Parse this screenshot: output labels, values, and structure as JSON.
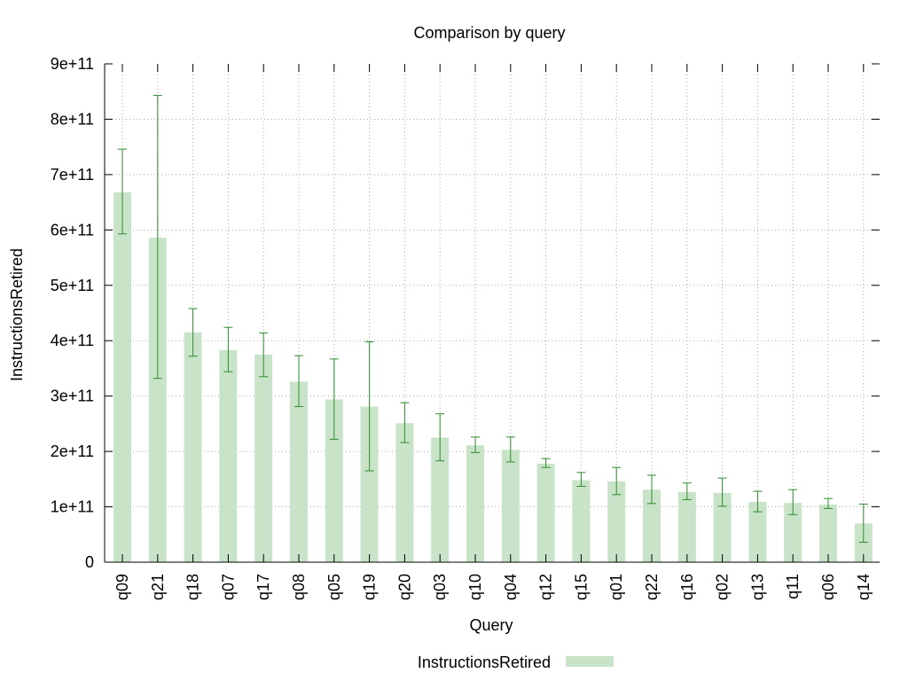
{
  "chart_data": {
    "type": "bar",
    "title": "Comparison by query",
    "xlabel": "Query",
    "ylabel": "InstructionsRetired",
    "ylim": [
      0,
      900000000000
    ],
    "yticks": [
      {
        "value": 0,
        "label": "0"
      },
      {
        "value": 100000000000,
        "label": "1e+11"
      },
      {
        "value": 200000000000,
        "label": "2e+11"
      },
      {
        "value": 300000000000,
        "label": "3e+11"
      },
      {
        "value": 400000000000,
        "label": "4e+11"
      },
      {
        "value": 500000000000,
        "label": "5e+11"
      },
      {
        "value": 600000000000,
        "label": "6e+11"
      },
      {
        "value": 700000000000,
        "label": "7e+11"
      },
      {
        "value": 800000000000,
        "label": "8e+11"
      },
      {
        "value": 900000000000,
        "label": "9e+11"
      }
    ],
    "categories": [
      "q09",
      "q21",
      "q18",
      "q07",
      "q17",
      "q08",
      "q05",
      "q19",
      "q20",
      "q03",
      "q10",
      "q04",
      "q12",
      "q15",
      "q01",
      "q22",
      "q16",
      "q02",
      "q13",
      "q11",
      "q06",
      "q14"
    ],
    "series": [
      {
        "name": "InstructionsRetired",
        "values": [
          668000000000.0,
          586000000000.0,
          415000000000.0,
          383000000000.0,
          375000000000.0,
          326000000000.0,
          294000000000.0,
          281000000000.0,
          251000000000.0,
          225000000000.0,
          211000000000.0,
          203000000000.0,
          178000000000.0,
          148000000000.0,
          146000000000.0,
          131000000000.0,
          127000000000.0,
          125000000000.0,
          109000000000.0,
          107000000000.0,
          104000000000.0,
          70000000000.0
        ],
        "error_low": [
          593000000000.0,
          332000000000.0,
          372000000000.0,
          344000000000.0,
          335000000000.0,
          281000000000.0,
          222000000000.0,
          165000000000.0,
          216000000000.0,
          183000000000.0,
          198000000000.0,
          181000000000.0,
          171000000000.0,
          137000000000.0,
          122000000000.0,
          106000000000.0,
          113000000000.0,
          101000000000.0,
          91000000000.0,
          86000000000.0,
          97000000000.0,
          36000000000.0
        ],
        "error_high": [
          746000000000.0,
          843000000000.0,
          458000000000.0,
          424000000000.0,
          414000000000.0,
          373000000000.0,
          367000000000.0,
          398000000000.0,
          288000000000.0,
          268000000000.0,
          226000000000.0,
          226000000000.0,
          187000000000.0,
          162000000000.0,
          171000000000.0,
          157000000000.0,
          143000000000.0,
          152000000000.0,
          128000000000.0,
          131000000000.0,
          115000000000.0,
          105000000000.0
        ]
      }
    ],
    "grid": true,
    "legend_position": "bottom-center",
    "colors": {
      "bar": "#c8e3c8",
      "error": "#2e8b2e",
      "grid": "#a8a8a8",
      "axis": "#000000"
    }
  }
}
